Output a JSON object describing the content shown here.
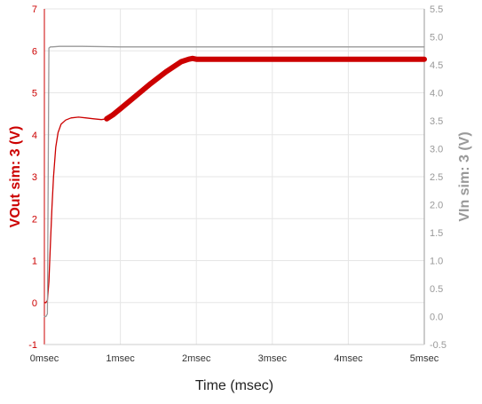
{
  "chart_data": {
    "type": "line",
    "xlabel": "Time (msec)",
    "ylabel_left": "VOut sim: 3 (V)",
    "ylabel_right": "VIn sim: 3 (V)",
    "x_unit": "msec",
    "xlim": [
      0,
      5
    ],
    "ylim_left": [
      -1,
      7
    ],
    "ylim_right": [
      -0.5,
      5.5
    ],
    "x_ticks": [
      0,
      1,
      2,
      3,
      4,
      5
    ],
    "x_tick_labels": [
      "0msec",
      "1msec",
      "2msec",
      "3msec",
      "4msec",
      "5msec"
    ],
    "y_left_ticks": [
      -1,
      0,
      1,
      2,
      3,
      4,
      5,
      6,
      7
    ],
    "y_left_tick_labels": [
      "-1",
      "0",
      "1",
      "2",
      "3",
      "4",
      "5",
      "6",
      "7"
    ],
    "y_right_ticks": [
      -0.5,
      0.0,
      0.5,
      1.0,
      1.5,
      2.0,
      2.5,
      3.0,
      3.5,
      4.0,
      4.5,
      5.0,
      5.5
    ],
    "y_right_tick_labels": [
      "-0.5",
      "0.0",
      "0.5",
      "1.0",
      "1.5",
      "2.0",
      "2.5",
      "3.0",
      "3.5",
      "4.0",
      "4.5",
      "5.0",
      "5.5"
    ],
    "grid": true,
    "colors": {
      "vout": "#cc0000",
      "vin": "#999999",
      "grid": "#e6e6e6",
      "axis_left": "#cc0000",
      "axis_right": "#999999"
    },
    "series": [
      {
        "key": "vout",
        "axis": "left",
        "x": [
          0,
          0.02,
          0.04,
          0.06,
          0.08,
          0.1,
          0.12,
          0.15,
          0.18,
          0.22,
          0.28,
          0.35,
          0.45,
          0.55,
          0.65,
          0.75,
          0.82
        ],
        "y": [
          0.0,
          0.0,
          0.05,
          0.5,
          1.4,
          2.3,
          3.0,
          3.7,
          4.05,
          4.25,
          4.35,
          4.4,
          4.42,
          4.4,
          4.38,
          4.36,
          4.38
        ]
      },
      {
        "key": "vout_regulated",
        "axis": "left",
        "x": [
          0.82,
          0.9,
          1.0,
          1.2,
          1.4,
          1.6,
          1.8,
          1.9,
          1.95,
          2.0,
          2.5,
          3.0,
          3.5,
          4.0,
          4.5,
          5.0
        ],
        "y": [
          4.38,
          4.47,
          4.62,
          4.92,
          5.22,
          5.5,
          5.74,
          5.8,
          5.82,
          5.8,
          5.8,
          5.8,
          5.8,
          5.8,
          5.8,
          5.8
        ]
      },
      {
        "key": "vin",
        "axis": "right",
        "x": [
          0,
          0.02,
          0.04,
          0.05,
          0.06,
          0.08,
          0.1,
          0.2,
          0.5,
          1.0,
          2.0,
          3.0,
          4.0,
          5.0
        ],
        "y": [
          0.0,
          0.0,
          0.05,
          2.5,
          4.8,
          4.82,
          4.82,
          4.83,
          4.83,
          4.82,
          4.82,
          4.82,
          4.82,
          4.82
        ]
      }
    ]
  }
}
